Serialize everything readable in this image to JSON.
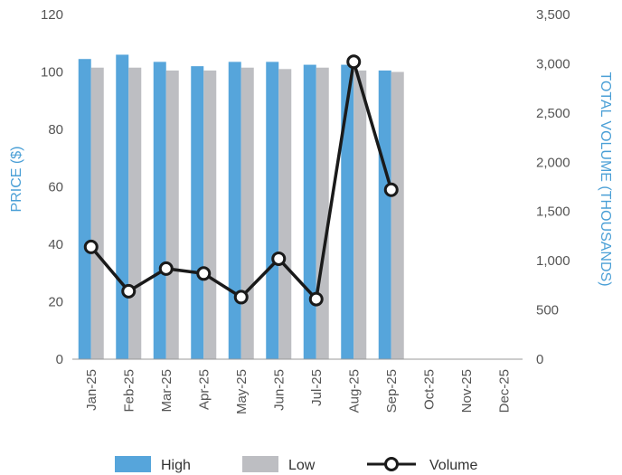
{
  "chart_data": {
    "type": "bar",
    "categories": [
      "Jan-25",
      "Feb-25",
      "Mar-25",
      "Apr-25",
      "May-25",
      "Jun-25",
      "Jul-25",
      "Aug-25",
      "Sep-25",
      "Oct-25",
      "Nov-25",
      "Dec-25"
    ],
    "series": [
      {
        "name": "High",
        "axis": "left",
        "kind": "bar",
        "color": "#56a5db",
        "values": [
          104.5,
          106,
          103.5,
          102,
          103.5,
          103.5,
          102.5,
          102.5,
          100.5,
          null,
          null,
          null
        ]
      },
      {
        "name": "Low",
        "axis": "left",
        "kind": "bar",
        "color": "#bdbec2",
        "values": [
          101.5,
          101.5,
          100.5,
          100.5,
          101.5,
          101,
          101.5,
          100.5,
          100,
          null,
          null,
          null
        ]
      },
      {
        "name": "Volume",
        "axis": "right",
        "kind": "line",
        "color": "#1a1a1a",
        "values": [
          1140,
          690,
          920,
          870,
          630,
          1020,
          610,
          3020,
          1720,
          null,
          null,
          null
        ]
      }
    ],
    "ylabel": "PRICE ($)",
    "y2label": "TOTAL VOLUME (THOUSANDS)",
    "ylim": [
      0,
      120
    ],
    "y2lim": [
      0,
      3500
    ],
    "yticks": [
      0,
      20,
      40,
      60,
      80,
      100,
      120
    ],
    "y2ticks": [
      "0",
      "500",
      "1,000",
      "1,500",
      "2,000",
      "2,500",
      "3,000",
      "3,500"
    ],
    "grid": false,
    "legend_position": "bottom"
  }
}
